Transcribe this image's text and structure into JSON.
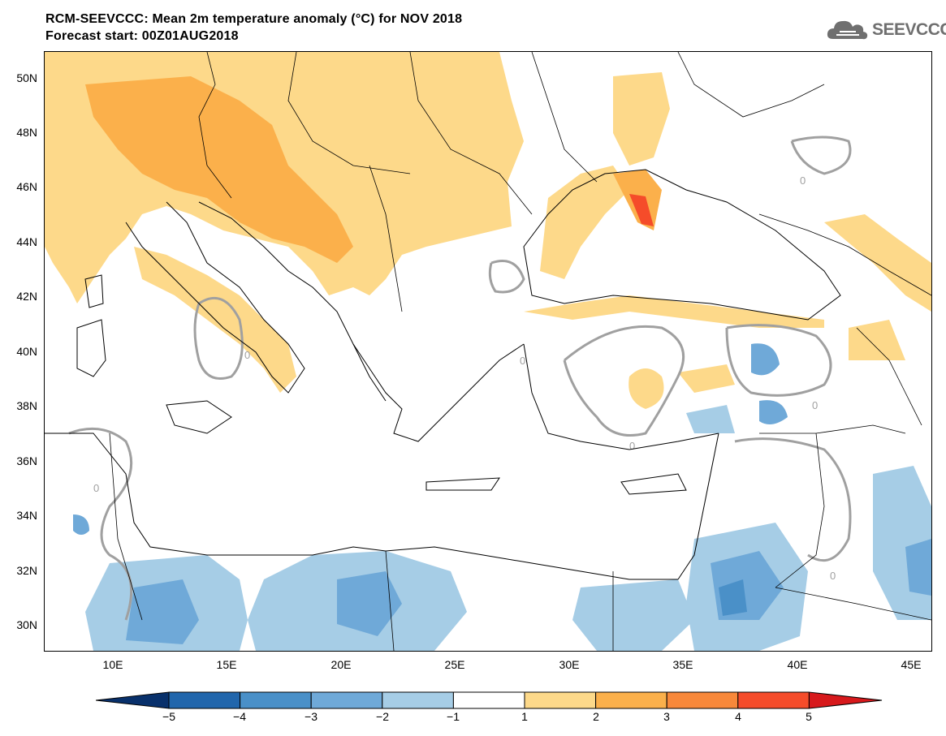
{
  "title": {
    "line1": "RCM-SEEVCCC: Mean 2m temperature anomaly (°C) for NOV 2018",
    "line2": "Forecast start: 00Z01AUG2018"
  },
  "logo": {
    "text": "SEEVCCC",
    "icon": "cloud-icon",
    "color": "#6f6f6f"
  },
  "map": {
    "lat_labels": [
      "50N",
      "48N",
      "46N",
      "44N",
      "42N",
      "40N",
      "38N",
      "36N",
      "34N",
      "32N",
      "30N"
    ],
    "lon_labels": [
      "10E",
      "15E",
      "20E",
      "25E",
      "30E",
      "35E",
      "40E",
      "45E"
    ],
    "contour_label": "0",
    "contour_color": "#a0a0a0",
    "region": {
      "lon_range": [
        7,
        46
      ],
      "lat_range": [
        29,
        51
      ]
    }
  },
  "colorbar": {
    "labels": [
      "−5",
      "−4",
      "−3",
      "−2",
      "−1",
      "1",
      "2",
      "3",
      "4",
      "5"
    ],
    "colors": [
      "#08306b",
      "#2166ac",
      "#4a90c8",
      "#6fa9d8",
      "#a6cde6",
      "#ffffff",
      "#fdd98a",
      "#fbb04b",
      "#f8883a",
      "#f54c2a",
      "#d7191c"
    ]
  }
}
